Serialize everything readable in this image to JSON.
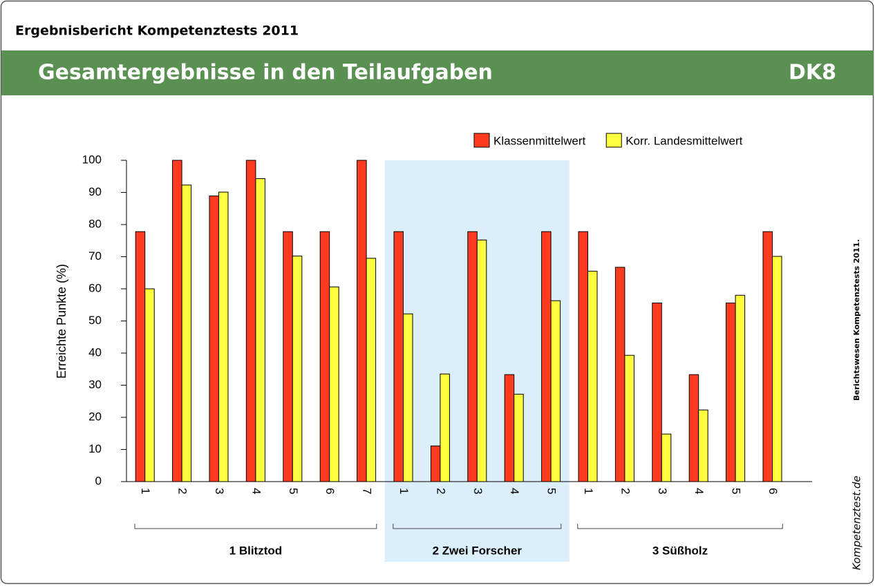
{
  "header": {
    "report": "Ergebnisbericht Kompetenztests 2011",
    "title": "Gesamtergebnisse in den Teilaufgaben",
    "code": "DK8"
  },
  "side_text": "Berichtswesen Kompetenztests 2011.",
  "logo": "Kompetenztest.de",
  "chart_data": {
    "type": "bar",
    "ylabel": "Erreichte Punkte (%)",
    "groups": [
      {
        "label": "1 Blitztod",
        "categories": [
          "1",
          "2",
          "3",
          "4",
          "5",
          "6",
          "7"
        ],
        "highlight": false
      },
      {
        "label": "2 Zwei Forscher",
        "categories": [
          "1",
          "2",
          "3",
          "4",
          "5"
        ],
        "highlight": true
      },
      {
        "label": "3 Süßholz",
        "categories": [
          "1",
          "2",
          "3",
          "4",
          "5",
          "6"
        ],
        "highlight": false
      }
    ],
    "series": [
      {
        "name": "Klassenmittelwert",
        "color": "#ff3b1f",
        "values": [
          77.8,
          100,
          88.9,
          100,
          77.8,
          77.8,
          100,
          77.8,
          11.1,
          77.8,
          33.3,
          77.8,
          77.8,
          66.7,
          55.6,
          33.3,
          55.6,
          77.8
        ]
      },
      {
        "name": "Korr. Landesmittelwert",
        "color": "#ffff40",
        "values": [
          60,
          92.3,
          90.1,
          94.3,
          70.2,
          60.6,
          69.5,
          52.2,
          33.5,
          75.2,
          27.2,
          56.3,
          65.5,
          39.3,
          14.8,
          22.3,
          58,
          70.1
        ]
      }
    ],
    "ylim": [
      0,
      100
    ],
    "yticks": [
      0,
      10,
      20,
      30,
      40,
      50,
      60,
      70,
      80,
      90,
      100
    ],
    "highlight_color": "#dbeffb",
    "legend": "top-right"
  }
}
